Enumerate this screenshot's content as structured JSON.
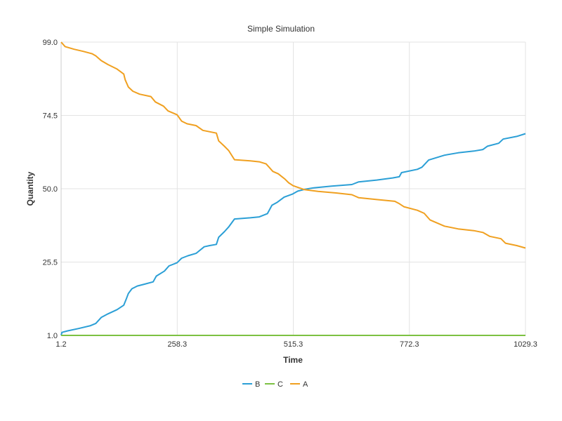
{
  "chart_data": {
    "type": "line",
    "title": "Simple Simulation",
    "xlabel": "Time",
    "ylabel": "Quantity",
    "xlim": [
      1.2,
      1029.3
    ],
    "ylim": [
      1.0,
      99.0
    ],
    "x_ticks": [
      "1.2",
      "258.3",
      "515.3",
      "772.3",
      "1029.3"
    ],
    "y_ticks": [
      "1.0",
      "25.5",
      "50.0",
      "74.5",
      "99.0"
    ],
    "grid": true,
    "legend_position": "bottom",
    "series": [
      {
        "name": "B",
        "color": "#2b9fd6",
        "points": [
          [
            1.2,
            1.0
          ],
          [
            3,
            2
          ],
          [
            15,
            2.5
          ],
          [
            40,
            3.3
          ],
          [
            65,
            4.2
          ],
          [
            78,
            5.0
          ],
          [
            90,
            7
          ],
          [
            105,
            8.2
          ],
          [
            125,
            9.6
          ],
          [
            140,
            11.1
          ],
          [
            145,
            13
          ],
          [
            150,
            15
          ],
          [
            158,
            16.6
          ],
          [
            170,
            17.5
          ],
          [
            185,
            18.1
          ],
          [
            205,
            18.9
          ],
          [
            212,
            20.8
          ],
          [
            230,
            22.5
          ],
          [
            240,
            24.2
          ],
          [
            258,
            25.3
          ],
          [
            268,
            26.8
          ],
          [
            282,
            27.6
          ],
          [
            300,
            28.4
          ],
          [
            318,
            30.6
          ],
          [
            330,
            31.0
          ],
          [
            345,
            31.4
          ],
          [
            350,
            33.8
          ],
          [
            363,
            35.7
          ],
          [
            372,
            37.2
          ],
          [
            385,
            39.9
          ],
          [
            420,
            40.3
          ],
          [
            440,
            40.6
          ],
          [
            458,
            41.7
          ],
          [
            468,
            44.5
          ],
          [
            480,
            45.5
          ],
          [
            495,
            47.2
          ],
          [
            513,
            48.2
          ],
          [
            525,
            49.2
          ],
          [
            540,
            49.8
          ],
          [
            560,
            50.3
          ],
          [
            600,
            50.9
          ],
          [
            645,
            51.4
          ],
          [
            660,
            52.3
          ],
          [
            700,
            52.9
          ],
          [
            735,
            53.6
          ],
          [
            750,
            54.0
          ],
          [
            755,
            55.4
          ],
          [
            790,
            56.5
          ],
          [
            800,
            57.2
          ],
          [
            815,
            59.6
          ],
          [
            850,
            61.2
          ],
          [
            880,
            62.0
          ],
          [
            915,
            62.6
          ],
          [
            935,
            63.1
          ],
          [
            945,
            64.2
          ],
          [
            970,
            65.2
          ],
          [
            980,
            66.6
          ],
          [
            1010,
            67.5
          ],
          [
            1029.3,
            68.4
          ]
        ]
      },
      {
        "name": "C",
        "color": "#7cc142",
        "points": [
          [
            1.2,
            1.0
          ],
          [
            1029.3,
            1.0
          ]
        ]
      },
      {
        "name": "A",
        "color": "#f0a020",
        "points": [
          [
            1.2,
            99.0
          ],
          [
            10,
            97.5
          ],
          [
            30,
            96.6
          ],
          [
            50,
            95.9
          ],
          [
            70,
            95.1
          ],
          [
            78,
            94.4
          ],
          [
            90,
            92.8
          ],
          [
            105,
            91.5
          ],
          [
            125,
            90.0
          ],
          [
            140,
            88.3
          ],
          [
            143,
            86.4
          ],
          [
            150,
            84.0
          ],
          [
            160,
            82.6
          ],
          [
            175,
            81.6
          ],
          [
            200,
            80.8
          ],
          [
            210,
            79.0
          ],
          [
            228,
            77.6
          ],
          [
            238,
            76.0
          ],
          [
            258,
            74.7
          ],
          [
            268,
            72.6
          ],
          [
            280,
            71.7
          ],
          [
            300,
            71.1
          ],
          [
            315,
            69.5
          ],
          [
            345,
            68.6
          ],
          [
            350,
            66.0
          ],
          [
            362,
            64.3
          ],
          [
            372,
            62.8
          ],
          [
            385,
            59.7
          ],
          [
            420,
            59.3
          ],
          [
            440,
            59.0
          ],
          [
            455,
            58.3
          ],
          [
            470,
            55.8
          ],
          [
            482,
            55.0
          ],
          [
            497,
            53.2
          ],
          [
            505,
            52.0
          ],
          [
            515,
            51.0
          ],
          [
            540,
            49.7
          ],
          [
            570,
            49.1
          ],
          [
            610,
            48.6
          ],
          [
            645,
            48.0
          ],
          [
            660,
            47.0
          ],
          [
            700,
            46.4
          ],
          [
            740,
            45.8
          ],
          [
            750,
            45.0
          ],
          [
            760,
            44.0
          ],
          [
            790,
            42.8
          ],
          [
            805,
            41.8
          ],
          [
            818,
            39.6
          ],
          [
            850,
            37.5
          ],
          [
            880,
            36.6
          ],
          [
            915,
            36.0
          ],
          [
            935,
            35.4
          ],
          [
            950,
            34.1
          ],
          [
            975,
            33.3
          ],
          [
            985,
            31.8
          ],
          [
            1010,
            31.0
          ],
          [
            1029.3,
            30.2
          ]
        ]
      }
    ]
  }
}
